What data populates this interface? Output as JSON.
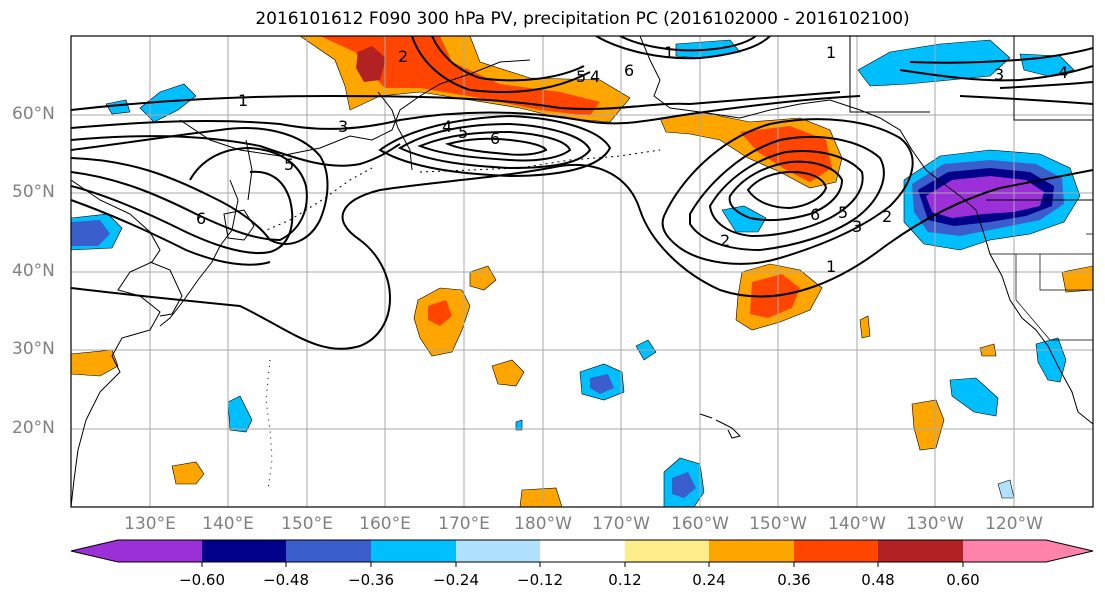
{
  "title": "2016101612 F090 300 hPa PV, precipitation PC (2016102000 - 2016102100)",
  "lat_labels": [
    "60°N",
    "50°N",
    "40°N",
    "30°N",
    "20°N"
  ],
  "lon_labels": [
    "130°E",
    "140°E",
    "150°E",
    "160°E",
    "170°E",
    "180°W",
    "170°W",
    "160°W",
    "150°W",
    "140°W",
    "130°W",
    "120°W"
  ],
  "colorbar": {
    "tick_labels": [
      "−0.60",
      "−0.48",
      "−0.36",
      "−0.24",
      "−0.12",
      "0.12",
      "0.24",
      "0.36",
      "0.48",
      "0.60"
    ],
    "colors": [
      "#9b30d8",
      "#00008b",
      "#3a5fcd",
      "#00bfff",
      "#b0e2ff",
      "#ffffff",
      "#ffec8b",
      "#ffa500",
      "#ff4500",
      "#b22222",
      "#ff82ab"
    ]
  },
  "pv_contour_labels": [
    "1",
    "2",
    "3",
    "4",
    "5",
    "6"
  ],
  "map": {
    "contour_color": "#000000",
    "grid_color": "#a9a9a9",
    "coast_color": "#000000"
  }
}
